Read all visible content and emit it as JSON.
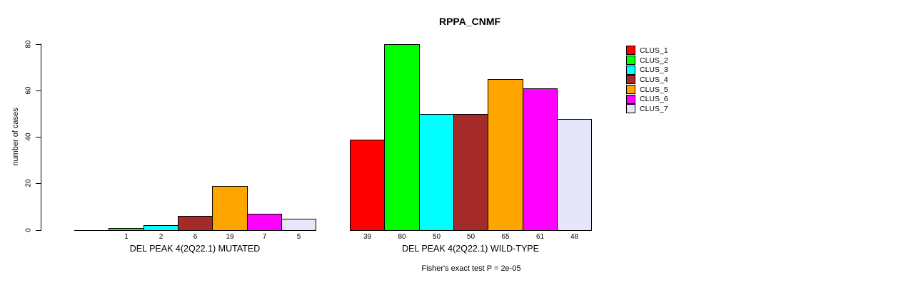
{
  "figure": {
    "background_color": "#FFFFFF",
    "axis_color": "#000000",
    "bar_border_color": "#000000"
  },
  "chart_data": {
    "type": "bar",
    "title": "RPPA_CNMF",
    "ylabel": "number of cases",
    "xlabel": "",
    "ylim": [
      0,
      80
    ],
    "yticks": [
      0,
      20,
      40,
      60,
      80
    ],
    "grid": false,
    "legend_position": "top-right",
    "legend": [
      {
        "label": "CLUS_1",
        "color": "#FF0000"
      },
      {
        "label": "CLUS_2",
        "color": "#00FF00"
      },
      {
        "label": "CLUS_3",
        "color": "#00FFFF"
      },
      {
        "label": "CLUS_4",
        "color": "#A52A2A"
      },
      {
        "label": "CLUS_5",
        "color": "#FFA500"
      },
      {
        "label": "CLUS_6",
        "color": "#FF00FF"
      },
      {
        "label": "CLUS_7",
        "color": "#E6E6FA"
      }
    ],
    "categories": [
      "CLUS_1",
      "CLUS_2",
      "CLUS_3",
      "CLUS_4",
      "CLUS_5",
      "CLUS_6",
      "CLUS_7"
    ],
    "groups": [
      {
        "label": "DEL PEAK 4(2Q22.1) MUTATED",
        "values": [
          0,
          1,
          2,
          6,
          19,
          7,
          5
        ],
        "bar_labels": [
          "",
          "1",
          "2",
          "6",
          "19",
          "7",
          "5"
        ]
      },
      {
        "label": "DEL PEAK 4(2Q22.1) WILD-TYPE",
        "values": [
          39,
          80,
          50,
          50,
          65,
          61,
          48
        ],
        "bar_labels": [
          "39",
          "80",
          "50",
          "50",
          "65",
          "61",
          "48"
        ]
      }
    ],
    "annotation": "Fisher's exact test P = 2e-05"
  }
}
